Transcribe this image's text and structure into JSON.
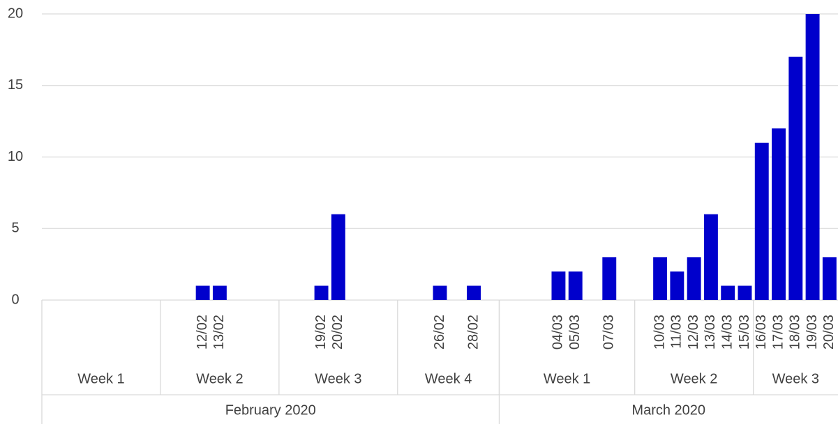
{
  "chart_data": {
    "type": "bar",
    "categories": [
      null,
      null,
      null,
      null,
      null,
      null,
      null,
      null,
      null,
      "12/02",
      "13/02",
      null,
      null,
      null,
      null,
      null,
      "19/02",
      "20/02",
      null,
      null,
      null,
      null,
      null,
      "26/02",
      null,
      "28/02",
      null,
      null,
      null,
      null,
      "04/03",
      "05/03",
      null,
      "07/03",
      null,
      null,
      "10/03",
      "11/03",
      "12/03",
      "13/03",
      "14/03",
      "15/03",
      "16/03",
      "17/03",
      "18/03",
      "19/03",
      "20/03"
    ],
    "values": [
      null,
      null,
      null,
      null,
      null,
      null,
      null,
      null,
      null,
      1,
      1,
      null,
      null,
      null,
      null,
      null,
      1,
      6,
      null,
      null,
      null,
      null,
      null,
      1,
      null,
      1,
      null,
      null,
      null,
      null,
      2,
      2,
      null,
      3,
      null,
      null,
      3,
      2,
      3,
      6,
      1,
      1,
      11,
      12,
      17,
      20,
      3
    ],
    "weeks": [
      {
        "label": "Week 1",
        "span": 7
      },
      {
        "label": "Week 2",
        "span": 7
      },
      {
        "label": "Week 3",
        "span": 7
      },
      {
        "label": "Week 4",
        "span": 6
      },
      {
        "label": "Week 1",
        "span": 8
      },
      {
        "label": "Week 2",
        "span": 7
      },
      {
        "label": "Week 3",
        "span": 5
      }
    ],
    "months": [
      {
        "label": "February 2020",
        "span": 4
      },
      {
        "label": "March 2020",
        "span": 3
      }
    ],
    "color": "#0000cc",
    "ylim": [
      0,
      20
    ],
    "yticks": [
      0,
      5,
      10,
      15,
      20
    ],
    "grid": true
  }
}
